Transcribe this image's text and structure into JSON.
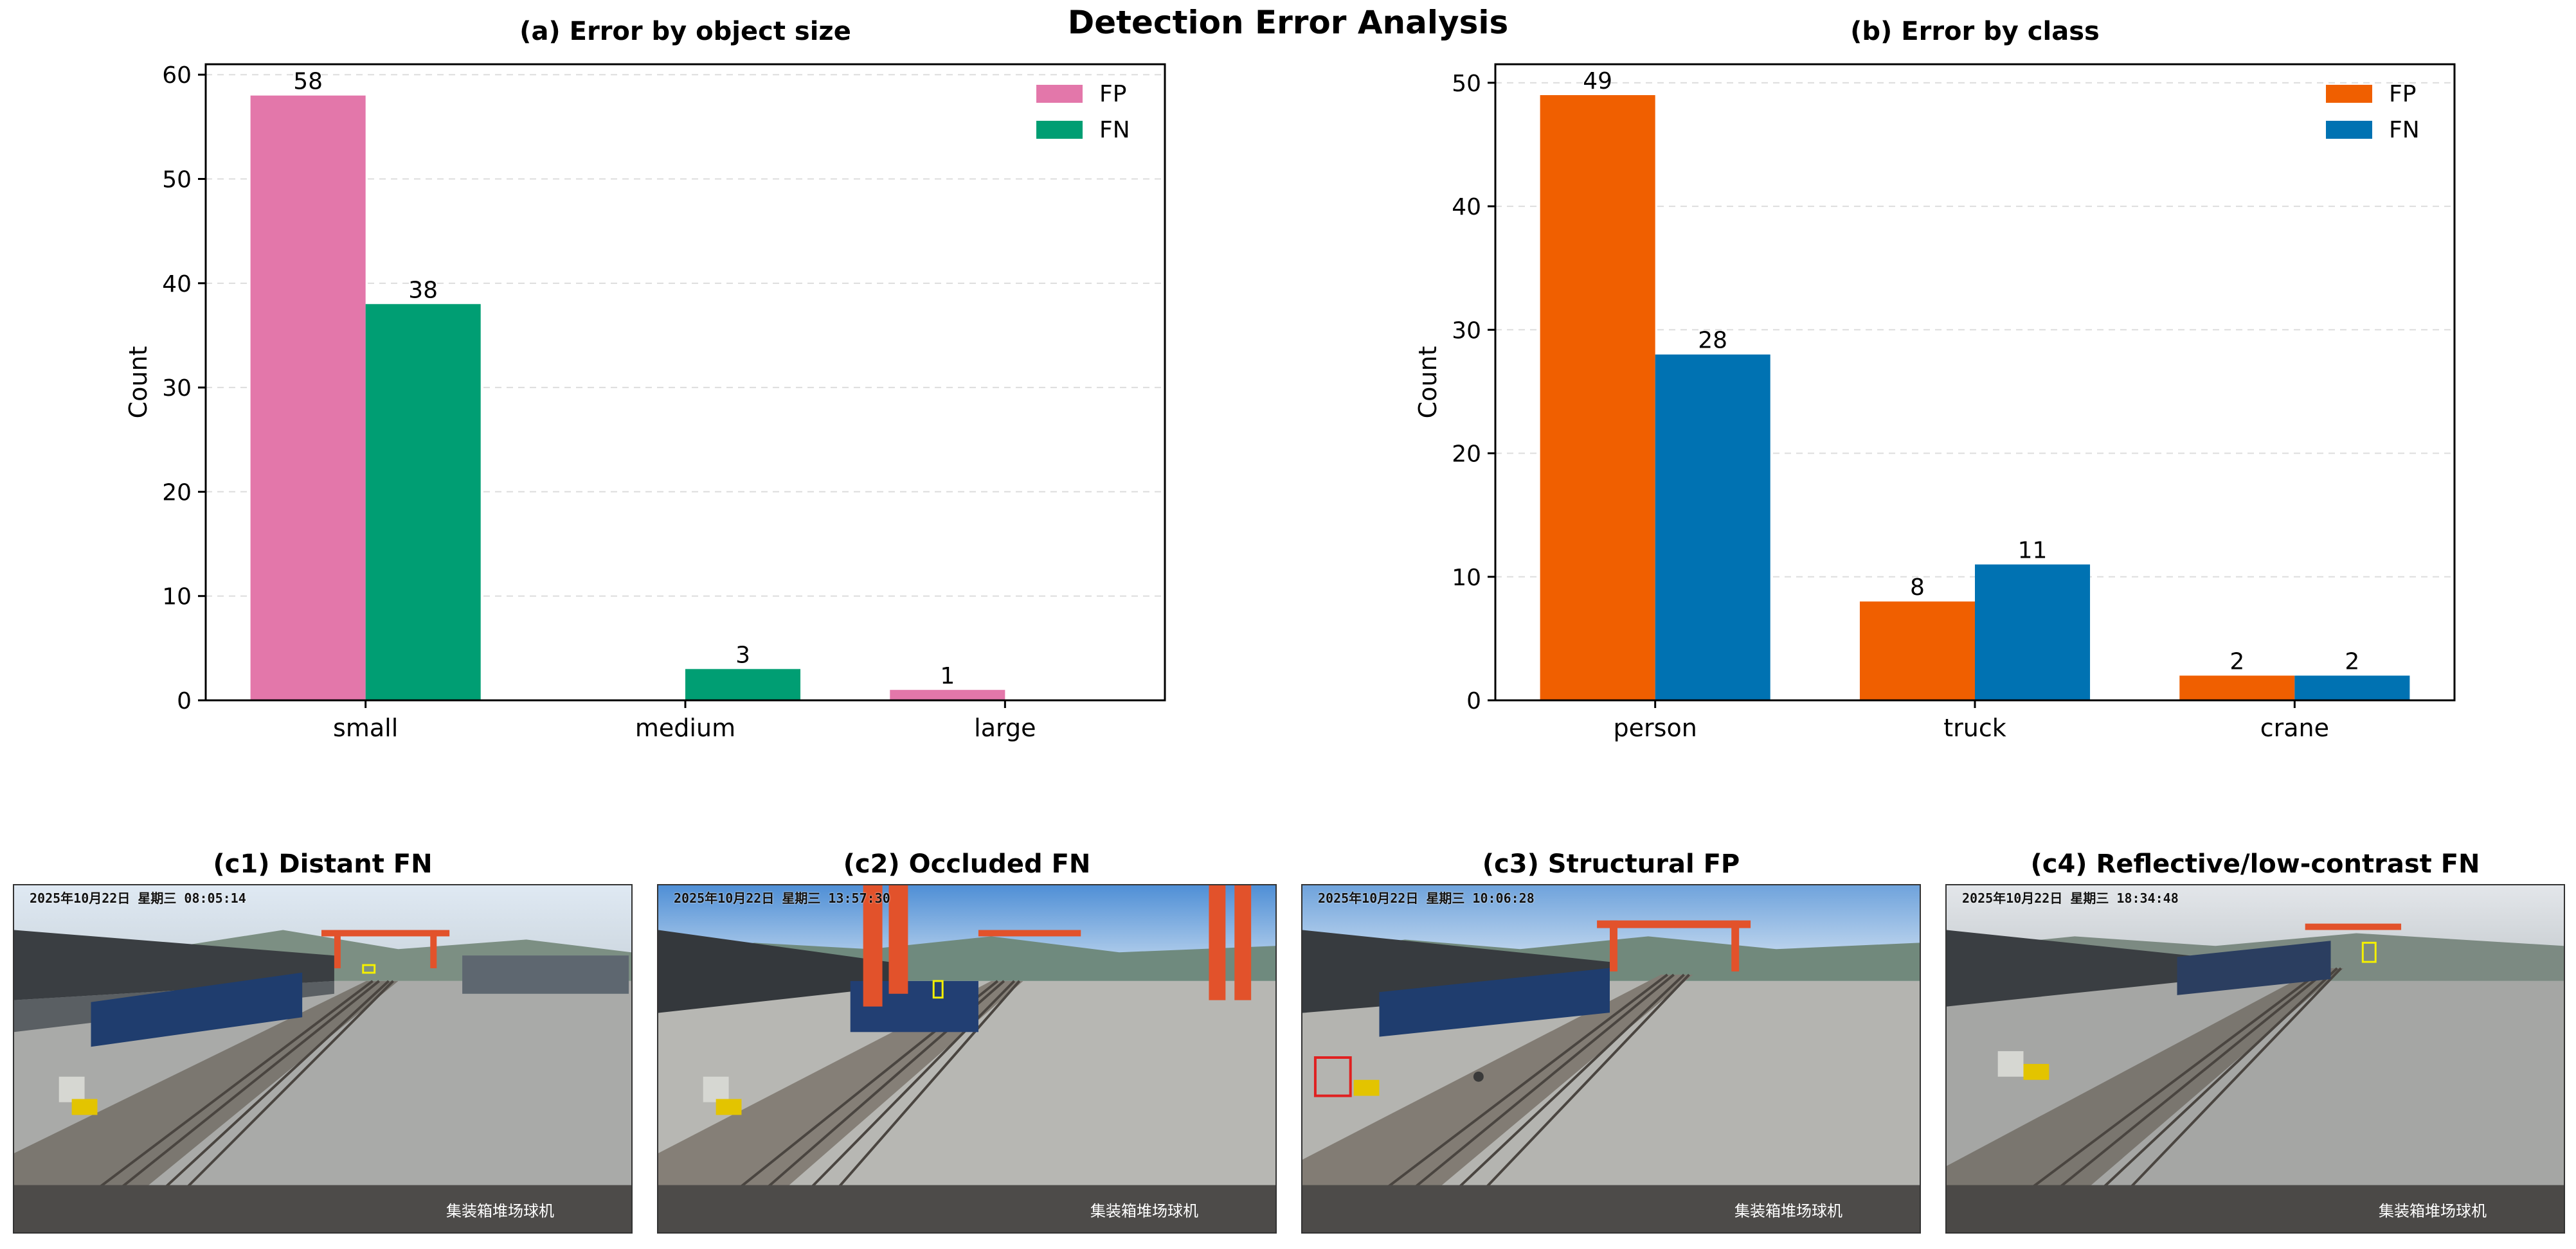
{
  "title": "Detection Error Analysis",
  "colors": {
    "a_fp": "#e377aa",
    "a_fn": "#009e73",
    "b_fp": "#f05f00",
    "b_fn": "#0072b2"
  },
  "chart_data": [
    {
      "type": "bar",
      "title": "(a) Error by object size",
      "xlabel": "",
      "ylabel": "Count",
      "categories": [
        "small",
        "medium",
        "large"
      ],
      "series": [
        {
          "name": "FP",
          "values": [
            58,
            0,
            1
          ]
        },
        {
          "name": "FN",
          "values": [
            38,
            3,
            0
          ]
        }
      ],
      "ylim": [
        0,
        61
      ],
      "yticks": [
        0,
        10,
        20,
        30,
        40,
        50,
        60
      ],
      "grid": "y-dashed",
      "legend": "top-right"
    },
    {
      "type": "bar",
      "title": "(b) Error by class",
      "xlabel": "",
      "ylabel": "Count",
      "categories": [
        "person",
        "truck",
        "crane"
      ],
      "series": [
        {
          "name": "FP",
          "values": [
            49,
            8,
            2
          ]
        },
        {
          "name": "FN",
          "values": [
            28,
            11,
            2
          ]
        }
      ],
      "ylim": [
        0,
        51.5
      ],
      "yticks": [
        0,
        10,
        20,
        30,
        40,
        50
      ],
      "grid": "y-dashed",
      "legend": "top-right"
    }
  ],
  "photos": [
    {
      "title": "(c1) Distant FN",
      "timestamp": "2025年10月22日 星期三 08:05:14",
      "watermark": "集装箱堆场球机"
    },
    {
      "title": "(c2) Occluded FN",
      "timestamp": "2025年10月22日 星期三 13:57:30",
      "watermark": "集装箱堆场球机"
    },
    {
      "title": "(c3) Structural FP",
      "timestamp": "2025年10月22日 星期三 10:06:28",
      "watermark": "集装箱堆场球机"
    },
    {
      "title": "(c4) Reflective/low-contrast FN",
      "timestamp": "2025年10月22日 星期三 18:34:48",
      "watermark": "集装箱堆场球机"
    }
  ]
}
